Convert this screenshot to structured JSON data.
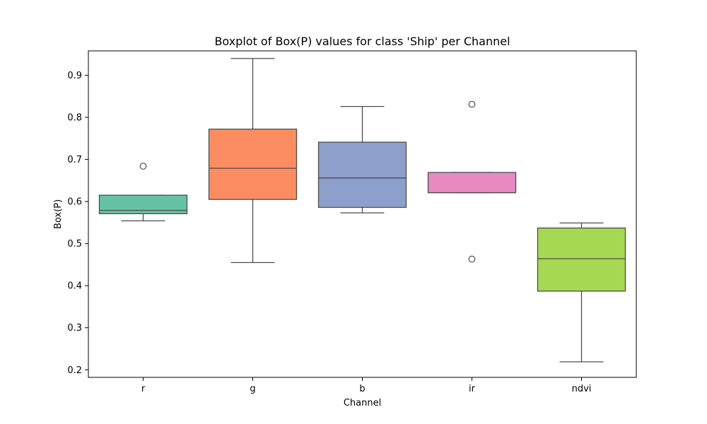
{
  "chart_data": {
    "type": "boxplot",
    "title": "Boxplot of Box(P) values for class 'Ship' per Channel",
    "xlabel": "Channel",
    "ylabel": "Box(P)",
    "ylim": [
      0.182,
      0.958
    ],
    "yticks": [
      0.2,
      0.3,
      0.4,
      0.5,
      0.6,
      0.7,
      0.8,
      0.9
    ],
    "ytick_labels": [
      "0.2",
      "0.3",
      "0.4",
      "0.5",
      "0.6",
      "0.7",
      "0.8",
      "0.9"
    ],
    "categories": [
      "r",
      "g",
      "b",
      "ir",
      "ndvi"
    ],
    "grid": false,
    "boxes": [
      {
        "category": "r",
        "color": "#66c2a5",
        "whisker_low": 0.554,
        "q1": 0.571,
        "median": 0.579,
        "q3": 0.615,
        "whisker_high": 0.615,
        "outliers": [
          0.684
        ]
      },
      {
        "category": "g",
        "color": "#fc8d62",
        "whisker_low": 0.455,
        "q1": 0.605,
        "median": 0.679,
        "q3": 0.772,
        "whisker_high": 0.94,
        "outliers": []
      },
      {
        "category": "b",
        "color": "#8da0cb",
        "whisker_low": 0.573,
        "q1": 0.586,
        "median": 0.656,
        "q3": 0.741,
        "whisker_high": 0.826,
        "outliers": []
      },
      {
        "category": "ir",
        "color": "#e78ac3",
        "whisker_low": 0.621,
        "q1": 0.621,
        "median": 0.621,
        "q3": 0.669,
        "whisker_high": 0.669,
        "outliers": [
          0.831,
          0.463
        ]
      },
      {
        "category": "ndvi",
        "color": "#a6d854",
        "whisker_low": 0.219,
        "q1": 0.387,
        "median": 0.464,
        "q3": 0.537,
        "whisker_high": 0.549,
        "outliers": []
      }
    ]
  }
}
